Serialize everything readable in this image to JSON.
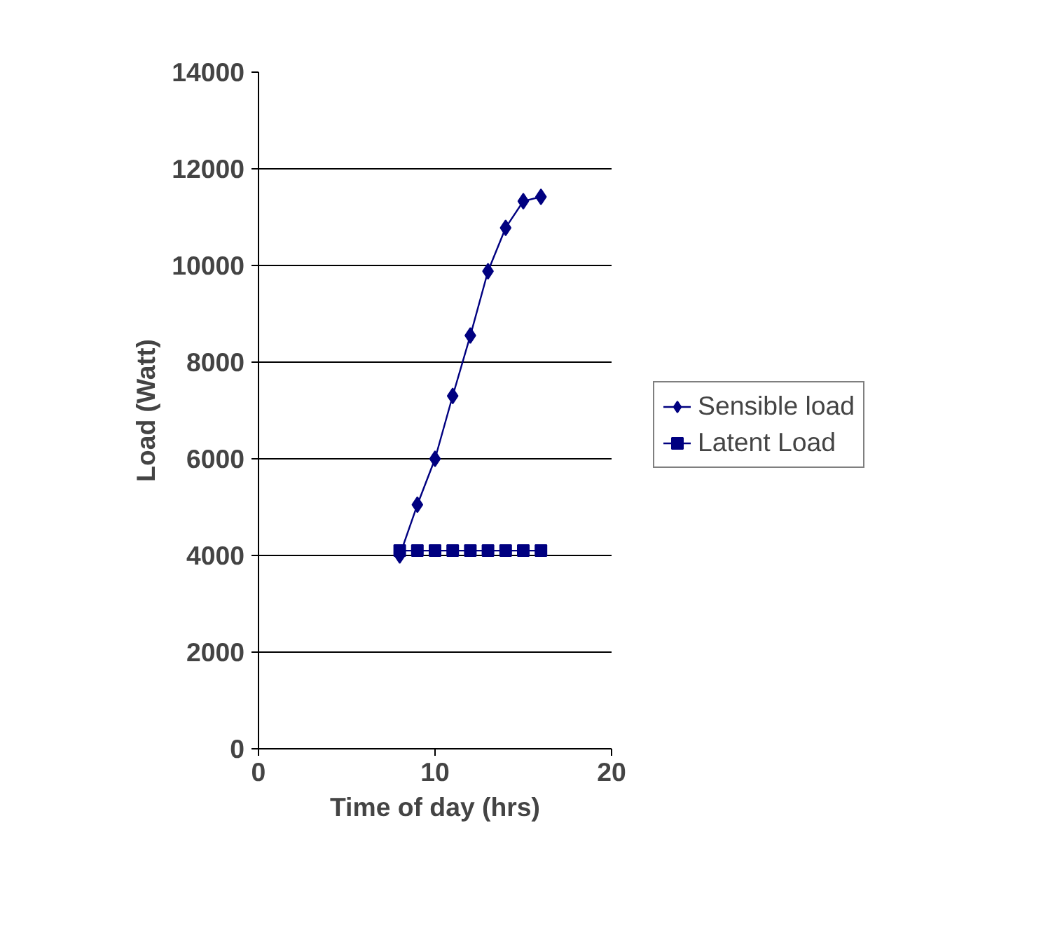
{
  "chart_data": {
    "type": "line",
    "xlabel": "Time of day (hrs)",
    "ylabel": "Load (Watt)",
    "x": [
      8,
      9,
      10,
      11,
      12,
      13,
      14,
      15,
      16
    ],
    "series": [
      {
        "name": "Sensible load",
        "color": "#000080",
        "marker": "diamond",
        "values": [
          4000,
          5050,
          6000,
          7300,
          8550,
          9880,
          10780,
          11330,
          11420
        ]
      },
      {
        "name": "Latent Load",
        "color": "#000080",
        "marker": "square",
        "values": [
          4100,
          4100,
          4100,
          4100,
          4100,
          4100,
          4100,
          4100,
          4100
        ]
      }
    ],
    "xlim": [
      0,
      20
    ],
    "xticks": [
      0,
      10,
      20
    ],
    "ylim": [
      0,
      14000
    ],
    "yticks": [
      0,
      2000,
      4000,
      6000,
      8000,
      10000,
      12000,
      14000
    ],
    "grid": "y",
    "legend": "right",
    "line_style": "solid"
  }
}
